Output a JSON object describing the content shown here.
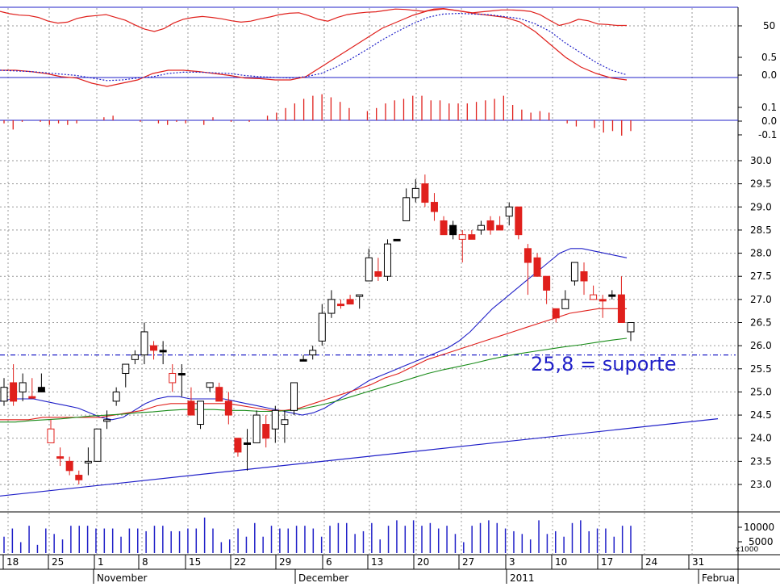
{
  "chart_data": [
    {
      "type": "line",
      "panel": "oscillator",
      "yticks": [
        50
      ],
      "ylim": [
        0,
        100
      ],
      "series": [
        {
          "color": "#e0201c",
          "values": [
            93,
            88,
            85,
            84,
            80,
            72,
            68,
            70,
            78,
            82,
            84,
            86,
            80,
            74,
            64,
            55,
            50,
            56,
            68,
            76,
            80,
            82,
            80,
            77,
            73,
            70,
            72,
            77,
            81,
            86,
            89,
            90,
            84,
            76,
            72,
            80,
            86,
            89,
            91,
            92,
            95,
            98,
            97,
            95,
            93,
            98,
            99,
            96,
            93,
            90,
            92,
            94,
            96,
            96,
            95,
            93,
            86,
            74,
            63,
            68,
            76,
            73,
            66,
            65,
            63,
            63
          ]
        }
      ],
      "grid": true
    },
    {
      "type": "line",
      "panel": "macd",
      "yticks": [
        0.5,
        0.0
      ],
      "series": [
        {
          "color": "#e0201c",
          "style": "solid",
          "values": [
            0.1,
            0.1,
            0.08,
            0.05,
            0.0,
            -0.02,
            -0.1,
            -0.15,
            -0.1,
            -0.05,
            0.05,
            0.1,
            0.1,
            0.08,
            0.05,
            0.02,
            -0.02,
            -0.03,
            -0.05,
            -0.05,
            0.0,
            0.15,
            0.3,
            0.45,
            0.6,
            0.75,
            0.85,
            0.95,
            1.02,
            1.05,
            1.02,
            0.98,
            0.95,
            0.92,
            0.85,
            0.7,
            0.5,
            0.3,
            0.15,
            0.05,
            -0.02,
            -0.05
          ]
        },
        {
          "color": "#2020c8",
          "style": "dotted",
          "values": [
            0.1,
            0.09,
            0.08,
            0.06,
            0.04,
            0.02,
            -0.02,
            -0.06,
            -0.05,
            -0.02,
            0.0,
            0.05,
            0.07,
            0.07,
            0.06,
            0.05,
            0.02,
            0.0,
            -0.01,
            -0.02,
            0.0,
            0.05,
            0.15,
            0.28,
            0.42,
            0.57,
            0.7,
            0.82,
            0.92,
            0.97,
            0.98,
            0.97,
            0.96,
            0.93,
            0.9,
            0.82,
            0.7,
            0.52,
            0.37,
            0.22,
            0.1,
            0.03
          ]
        }
      ],
      "grid": true
    },
    {
      "type": "bar",
      "panel": "macd-histogram",
      "yticks": [
        0.1,
        0.0,
        -0.1
      ],
      "values": [
        -0.02,
        -0.06,
        -0.01,
        0.0,
        -0.01,
        -0.03,
        -0.02,
        -0.03,
        -0.02,
        0.0,
        0.0,
        0.02,
        0.03,
        0.0,
        0.0,
        -0.01,
        0.0,
        -0.02,
        -0.03,
        -0.01,
        -0.02,
        0.0,
        -0.03,
        0.02,
        0.0,
        -0.01,
        0.0,
        -0.01,
        0.0,
        0.03,
        0.05,
        0.08,
        0.11,
        0.14,
        0.16,
        0.17,
        0.15,
        0.12,
        0.08,
        0.0,
        0.06,
        0.08,
        0.11,
        0.13,
        0.14,
        0.16,
        0.16,
        0.13,
        0.13,
        0.11,
        0.11,
        0.11,
        0.12,
        0.13,
        0.14,
        0.16,
        0.1,
        0.07,
        0.05,
        0.06,
        0.05,
        0.0,
        -0.02,
        -0.04,
        0.0,
        -0.05,
        -0.08,
        -0.07,
        -0.1,
        -0.07
      ],
      "grid": true
    },
    {
      "type": "candlestick",
      "panel": "price",
      "yticks": [
        30.0,
        29.5,
        29.0,
        28.5,
        28.0,
        27.5,
        27.0,
        26.5,
        26.0,
        25.5,
        25.0,
        24.5,
        24.0,
        23.5,
        23.0
      ],
      "ylim": [
        22.5,
        30.3
      ],
      "candles": [
        {
          "o": 25.1,
          "h": 25.3,
          "l": 24.7,
          "c": 24.8,
          "up": true
        },
        {
          "o": 25.2,
          "h": 25.6,
          "l": 24.7,
          "c": 24.8,
          "up": false
        },
        {
          "o": 25.2,
          "h": 25.4,
          "l": 24.8,
          "c": 25.0,
          "up": true
        },
        {
          "o": 24.9,
          "h": 25.3,
          "l": 24.9,
          "c": 24.9,
          "up": false
        },
        {
          "o": 25.1,
          "h": 25.4,
          "l": 25.0,
          "c": 25.0,
          "up": false,
          "black": true
        },
        {
          "o": 24.2,
          "h": 24.4,
          "l": 23.9,
          "c": 23.9,
          "up": false,
          "hollowRed": true
        },
        {
          "o": 23.6,
          "h": 23.8,
          "l": 23.4,
          "c": 23.6,
          "up": false
        },
        {
          "o": 23.5,
          "h": 23.6,
          "l": 23.2,
          "c": 23.3,
          "up": false
        },
        {
          "o": 23.2,
          "h": 23.3,
          "l": 23.0,
          "c": 23.1,
          "up": false
        },
        {
          "o": 23.5,
          "h": 23.8,
          "l": 23.2,
          "c": 23.5,
          "up": true
        },
        {
          "o": 23.5,
          "h": 24.2,
          "l": 23.5,
          "c": 24.2,
          "up": true
        },
        {
          "o": 24.4,
          "h": 24.6,
          "l": 24.2,
          "c": 24.4,
          "up": true
        },
        {
          "o": 24.8,
          "h": 25.1,
          "l": 24.7,
          "c": 25.0,
          "up": true
        },
        {
          "o": 25.4,
          "h": 25.6,
          "l": 25.1,
          "c": 25.6,
          "up": true
        },
        {
          "o": 25.7,
          "h": 25.9,
          "l": 25.6,
          "c": 25.8,
          "up": true
        },
        {
          "o": 25.8,
          "h": 26.5,
          "l": 25.6,
          "c": 26.3,
          "up": true
        },
        {
          "o": 26.0,
          "h": 26.1,
          "l": 25.7,
          "c": 25.9,
          "up": false
        },
        {
          "o": 25.9,
          "h": 26.1,
          "l": 25.6,
          "c": 25.9,
          "up": false,
          "black": true
        },
        {
          "o": 25.4,
          "h": 25.6,
          "l": 25.0,
          "c": 25.2,
          "up": false,
          "hollowRed": true
        },
        {
          "o": 25.4,
          "h": 25.6,
          "l": 24.9,
          "c": 25.4,
          "up": true,
          "black": true
        },
        {
          "o": 24.8,
          "h": 25.1,
          "l": 24.5,
          "c": 24.5,
          "up": false
        },
        {
          "o": 24.3,
          "h": 24.8,
          "l": 24.2,
          "c": 24.8,
          "up": true
        },
        {
          "o": 25.1,
          "h": 25.2,
          "l": 25.0,
          "c": 25.2,
          "up": true
        },
        {
          "o": 25.1,
          "h": 25.2,
          "l": 24.8,
          "c": 24.8,
          "up": false
        },
        {
          "o": 24.8,
          "h": 25.0,
          "l": 24.3,
          "c": 24.5,
          "up": false
        },
        {
          "o": 24.0,
          "h": 24.0,
          "l": 23.6,
          "c": 23.7,
          "up": false
        },
        {
          "o": 23.9,
          "h": 24.2,
          "l": 23.3,
          "c": 23.9,
          "up": true,
          "black": true
        },
        {
          "o": 23.9,
          "h": 24.6,
          "l": 23.9,
          "c": 24.5,
          "up": true
        },
        {
          "o": 24.3,
          "h": 24.5,
          "l": 23.8,
          "c": 24.0,
          "up": false
        },
        {
          "o": 24.2,
          "h": 24.7,
          "l": 23.9,
          "c": 24.6,
          "up": true
        },
        {
          "o": 24.3,
          "h": 24.6,
          "l": 23.9,
          "c": 24.4,
          "up": true
        },
        {
          "o": 24.6,
          "h": 25.2,
          "l": 24.5,
          "c": 25.2,
          "up": true
        },
        {
          "o": 25.7,
          "h": 25.8,
          "l": 25.7,
          "c": 25.7,
          "up": true,
          "black": true
        },
        {
          "o": 25.8,
          "h": 26.0,
          "l": 25.7,
          "c": 25.9,
          "up": true
        },
        {
          "o": 26.1,
          "h": 26.9,
          "l": 26.0,
          "c": 26.7,
          "up": true
        },
        {
          "o": 26.7,
          "h": 27.2,
          "l": 26.6,
          "c": 27.0,
          "up": true
        },
        {
          "o": 26.9,
          "h": 27.0,
          "l": 26.8,
          "c": 26.9,
          "up": false
        },
        {
          "o": 26.9,
          "h": 27.1,
          "l": 26.9,
          "c": 27.0,
          "up": false
        },
        {
          "o": 27.1,
          "h": 27.1,
          "l": 26.8,
          "c": 27.1,
          "up": true
        },
        {
          "o": 27.4,
          "h": 28.1,
          "l": 27.4,
          "c": 27.9,
          "up": true
        },
        {
          "o": 27.5,
          "h": 27.9,
          "l": 27.4,
          "c": 27.6,
          "up": false
        },
        {
          "o": 27.5,
          "h": 28.3,
          "l": 27.4,
          "c": 28.2,
          "up": true
        },
        {
          "o": 28.3,
          "h": 28.3,
          "l": 28.3,
          "c": 28.3,
          "up": true,
          "black": true
        },
        {
          "o": 28.7,
          "h": 29.4,
          "l": 28.7,
          "c": 29.2,
          "up": true
        },
        {
          "o": 29.2,
          "h": 29.6,
          "l": 29.1,
          "c": 29.4,
          "up": true
        },
        {
          "o": 29.5,
          "h": 29.7,
          "l": 29.0,
          "c": 29.1,
          "up": false
        },
        {
          "o": 29.1,
          "h": 29.3,
          "l": 28.7,
          "c": 28.9,
          "up": false
        },
        {
          "o": 28.7,
          "h": 28.8,
          "l": 28.4,
          "c": 28.4,
          "up": false
        },
        {
          "o": 28.6,
          "h": 28.7,
          "l": 28.3,
          "c": 28.4,
          "up": false,
          "black": true
        },
        {
          "o": 28.3,
          "h": 28.5,
          "l": 27.8,
          "c": 28.4,
          "up": true,
          "hollowRed": true
        },
        {
          "o": 28.3,
          "h": 28.5,
          "l": 28.3,
          "c": 28.4,
          "up": false
        },
        {
          "o": 28.5,
          "h": 28.7,
          "l": 28.4,
          "c": 28.6,
          "up": true
        },
        {
          "o": 28.7,
          "h": 28.8,
          "l": 28.4,
          "c": 28.5,
          "up": false
        },
        {
          "o": 28.6,
          "h": 28.8,
          "l": 28.5,
          "c": 28.5,
          "up": false
        },
        {
          "o": 28.8,
          "h": 29.1,
          "l": 28.6,
          "c": 29.0,
          "up": true
        },
        {
          "o": 29.0,
          "h": 29.0,
          "l": 28.3,
          "c": 28.4,
          "up": false
        },
        {
          "o": 28.1,
          "h": 28.2,
          "l": 27.1,
          "c": 27.8,
          "up": false
        },
        {
          "o": 27.9,
          "h": 28.0,
          "l": 27.5,
          "c": 27.5,
          "up": false
        },
        {
          "o": 27.5,
          "h": 27.5,
          "l": 26.9,
          "c": 27.2,
          "up": false
        },
        {
          "o": 26.8,
          "h": 26.8,
          "l": 26.5,
          "c": 26.6,
          "up": false
        },
        {
          "o": 26.8,
          "h": 27.2,
          "l": 26.8,
          "c": 27.0,
          "up": true
        },
        {
          "o": 27.4,
          "h": 27.8,
          "l": 27.3,
          "c": 27.8,
          "up": true
        },
        {
          "o": 27.6,
          "h": 27.8,
          "l": 27.1,
          "c": 27.4,
          "up": false
        },
        {
          "o": 27.1,
          "h": 27.3,
          "l": 27.0,
          "c": 27.0,
          "up": false,
          "hollowRed": true
        },
        {
          "o": 27.0,
          "h": 27.1,
          "l": 26.6,
          "c": 27.0,
          "up": false
        },
        {
          "o": 27.1,
          "h": 27.2,
          "l": 27.0,
          "c": 27.1,
          "up": true,
          "black": true
        },
        {
          "o": 27.1,
          "h": 27.5,
          "l": 26.5,
          "c": 26.5,
          "up": false
        },
        {
          "o": 26.3,
          "h": 26.5,
          "l": 26.1,
          "c": 26.5,
          "up": true
        }
      ],
      "series": [
        {
          "color": "#2020c8",
          "name": "",
          "values": [
            24.8,
            24.85,
            24.85,
            24.85,
            24.8,
            24.75,
            24.7,
            24.65,
            24.55,
            24.45,
            24.4,
            24.45,
            24.6,
            24.75,
            24.85,
            24.9,
            24.9,
            24.85,
            24.85,
            24.85,
            24.85,
            24.8,
            24.75,
            24.7,
            24.65,
            24.6,
            24.55,
            24.5,
            24.55,
            24.65,
            24.8,
            24.95,
            25.1,
            25.25,
            25.35,
            25.45,
            25.55,
            25.65,
            25.75,
            25.85,
            25.95,
            26.1,
            26.3,
            26.55,
            26.8,
            27.0,
            27.2,
            27.4,
            27.6,
            27.8,
            28.0,
            28.1,
            28.1,
            28.05,
            28.0,
            27.95,
            27.9
          ]
        },
        {
          "color": "#e0201c",
          "name": "",
          "values": [
            24.4,
            24.4,
            24.4,
            24.45,
            24.45,
            24.45,
            24.45,
            24.45,
            24.5,
            24.55,
            24.6,
            24.7,
            24.75,
            24.75,
            24.75,
            24.75,
            24.75,
            24.7,
            24.65,
            24.6,
            24.6,
            24.65,
            24.75,
            24.85,
            24.95,
            25.05,
            25.15,
            25.3,
            25.4,
            25.55,
            25.7,
            25.8,
            25.9,
            26.0,
            26.1,
            26.2,
            26.3,
            26.4,
            26.5,
            26.6,
            26.7,
            26.75,
            26.8,
            26.8,
            26.8
          ]
        },
        {
          "color": "#1a8c1a",
          "name": "",
          "values": [
            24.35,
            24.35,
            24.38,
            24.4,
            24.42,
            24.45,
            24.48,
            24.5,
            24.52,
            24.55,
            24.57,
            24.6,
            24.62,
            24.62,
            24.62,
            24.6,
            24.6,
            24.58,
            24.58,
            24.6,
            24.65,
            24.72,
            24.8,
            24.9,
            25.0,
            25.1,
            25.2,
            25.3,
            25.4,
            25.48,
            25.55,
            25.62,
            25.7,
            25.77,
            25.83,
            25.88,
            25.93,
            25.98,
            26.02,
            26.07,
            26.12,
            26.16
          ]
        }
      ],
      "hlines": [
        {
          "y": 25.8,
          "color": "#2020c8",
          "style": "dashdot"
        }
      ],
      "trendline": {
        "from": 22.75,
        "to": 24.42,
        "color": "#2020c8"
      },
      "annotation": {
        "text": "25,8 = suporte",
        "color": "#2020c8"
      },
      "grid": true
    },
    {
      "type": "bar",
      "panel": "volume",
      "yticks": [
        "10000",
        "5000"
      ],
      "yunit": "x1000",
      "values": [
        6000,
        9000,
        4000,
        10000,
        3000,
        9000,
        7000,
        5000,
        10000,
        10000,
        10000,
        9000,
        9000,
        9000,
        6000,
        9000,
        9000,
        8000,
        10000,
        10000,
        8000,
        8000,
        9000,
        9000,
        13000,
        9000,
        4000,
        5000,
        9000,
        6000,
        11000,
        6000,
        10000,
        9000,
        9000,
        10000,
        10000,
        9000,
        6000,
        10000,
        11000,
        11000,
        7000,
        8000,
        11000,
        5000,
        10000,
        12000,
        10000,
        12000,
        10000,
        11000,
        9000,
        10000,
        7000,
        4000,
        10000,
        11000,
        12000,
        11000,
        9000,
        8000,
        7000,
        5000,
        12000,
        7000,
        8000,
        6000,
        11000,
        12000,
        8000,
        9000,
        9000,
        6000,
        10000,
        10000
      ],
      "grid": true
    }
  ],
  "xaxis": {
    "day_labels": [
      "18",
      "25",
      "1",
      "8",
      "15",
      "22",
      "29",
      "6",
      "13",
      "20",
      "27",
      "3",
      "10",
      "17",
      "24",
      "31"
    ],
    "month_labels": [
      "November",
      "December",
      "2011",
      "Februa"
    ]
  },
  "colors": {
    "up_fill": "#ffffff",
    "up_stroke": "#000000",
    "down_fill": "#e0201c",
    "axis_blue": "#2020c8",
    "grid": "#999999"
  }
}
